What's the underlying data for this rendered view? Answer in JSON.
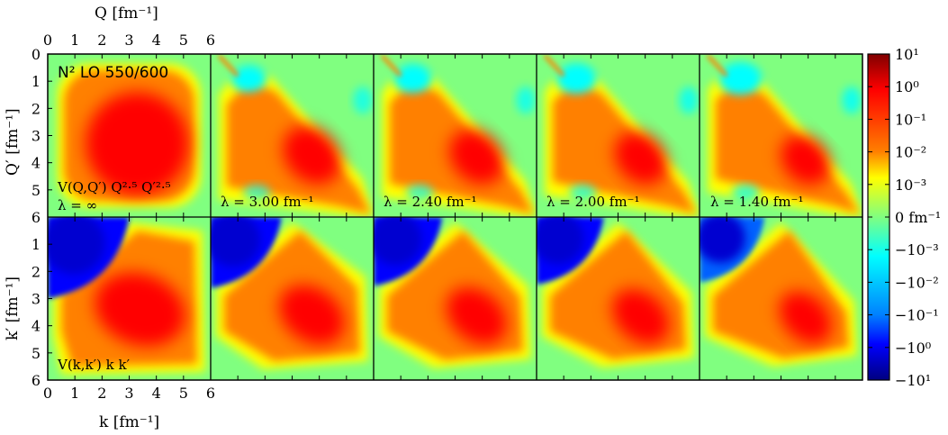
{
  "chart_data": {
    "type": "heatmap",
    "corner_label": "N² LO 550/600",
    "top_axis": {
      "label": "Q [fm⁻¹]",
      "ticks": [
        "0",
        "1",
        "2",
        "3",
        "4",
        "5",
        "6"
      ],
      "lim": [
        0,
        6
      ]
    },
    "bottom_axis": {
      "label": "k [fm⁻¹]",
      "ticks": [
        "0",
        "1",
        "2",
        "3",
        "4",
        "5",
        "6"
      ],
      "lim": [
        0,
        6
      ]
    },
    "top_row": {
      "ylabel": "Q′ [fm⁻¹]",
      "yticks": [
        "0",
        "1",
        "2",
        "3",
        "4",
        "5",
        "6"
      ],
      "function_label": "V(Q,Q′) Q²·⁵ Q′²·⁵",
      "lambda_labels": [
        "λ = ∞",
        "λ = 3.00 fm⁻¹",
        "λ = 2.40 fm⁻¹",
        "λ = 2.00 fm⁻¹",
        "λ = 1.40 fm⁻¹"
      ]
    },
    "bottom_row": {
      "ylabel": "k′ [fm⁻¹]",
      "yticks": [
        "1",
        "2",
        "3",
        "4",
        "5",
        "6"
      ],
      "function_label": "V(k,k′) k k′"
    },
    "lambda_values": [
      "inf",
      3.0,
      2.4,
      2.0,
      1.4
    ],
    "colorbar": {
      "ticks": [
        "10¹",
        "10⁰",
        "10⁻¹",
        "10⁻²",
        "10⁻³",
        "0 fm⁻¹",
        "−10⁻³",
        "−10⁻²",
        "−10⁻¹",
        "−10⁰",
        "−10¹"
      ],
      "scale": "symlog",
      "colormap": "jet"
    },
    "colors": {
      "dark_red": "#800000",
      "red": "#ff0000",
      "orange": "#ff8000",
      "yellow": "#ffff00",
      "green": "#80ff80",
      "cyan": "#00ffff",
      "blue": "#0000ff",
      "navy": "#000080"
    }
  }
}
